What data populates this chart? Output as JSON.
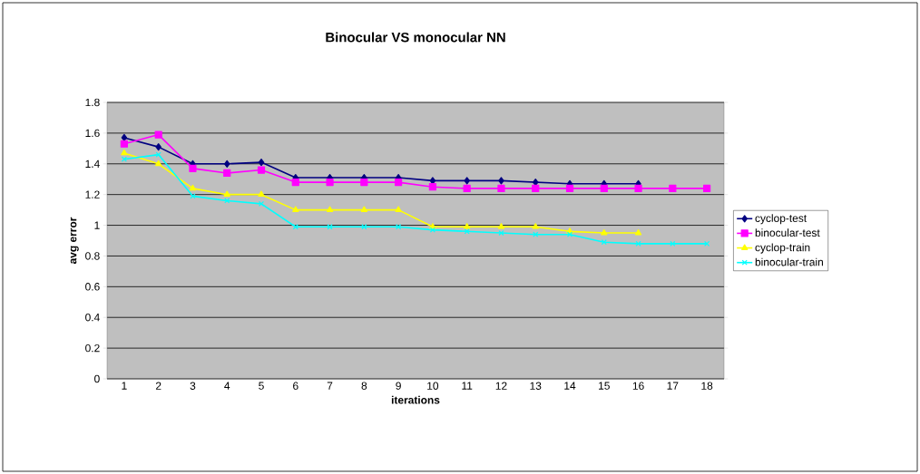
{
  "chart_data": {
    "type": "line",
    "title": "Binocular VS monocular NN",
    "xlabel": "iterations",
    "ylabel": "avg error",
    "categories": [
      "1",
      "2",
      "3",
      "4",
      "5",
      "6",
      "7",
      "8",
      "9",
      "10",
      "11",
      "12",
      "13",
      "14",
      "15",
      "16",
      "17",
      "18"
    ],
    "series": [
      {
        "name": "cyclop-test",
        "color": "#000080",
        "marker": "diamond",
        "values": [
          1.57,
          1.51,
          1.4,
          1.4,
          1.41,
          1.31,
          1.31,
          1.31,
          1.31,
          1.29,
          1.29,
          1.29,
          1.28,
          1.27,
          1.27,
          1.27,
          null,
          null
        ]
      },
      {
        "name": "binocular-test",
        "color": "#ff00ff",
        "marker": "square",
        "values": [
          1.53,
          1.59,
          1.37,
          1.34,
          1.36,
          1.28,
          1.28,
          1.28,
          1.28,
          1.25,
          1.24,
          1.24,
          1.24,
          1.24,
          1.24,
          1.24,
          1.24,
          1.24
        ]
      },
      {
        "name": "cyclop-train",
        "color": "#ffff00",
        "marker": "triangle",
        "values": [
          1.47,
          1.4,
          1.24,
          1.2,
          1.2,
          1.1,
          1.1,
          1.1,
          1.1,
          0.99,
          0.99,
          0.99,
          0.99,
          0.96,
          0.95,
          0.95,
          null,
          null
        ]
      },
      {
        "name": "binocular-train",
        "color": "#00ffff",
        "marker": "cross",
        "values": [
          1.43,
          1.46,
          1.19,
          1.16,
          1.14,
          0.99,
          0.99,
          0.99,
          0.99,
          0.97,
          0.96,
          0.95,
          0.94,
          0.94,
          0.89,
          0.88,
          0.88,
          0.88
        ]
      }
    ],
    "ylim": [
      0,
      1.8
    ],
    "yticks": [
      0,
      0.2,
      0.4,
      0.6,
      0.8,
      1,
      1.2,
      1.4,
      1.6,
      1.8
    ],
    "grid": "y",
    "legend": "right"
  }
}
